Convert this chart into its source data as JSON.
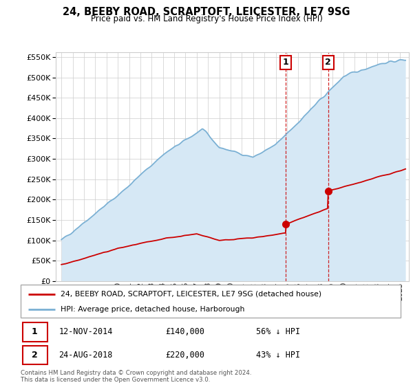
{
  "title": "24, BEEBY ROAD, SCRAPTOFT, LEICESTER, LE7 9SG",
  "subtitle": "Price paid vs. HM Land Registry's House Price Index (HPI)",
  "legend_line1": "24, BEEBY ROAD, SCRAPTOFT, LEICESTER, LE7 9SG (detached house)",
  "legend_line2": "HPI: Average price, detached house, Harborough",
  "transaction1_date": "12-NOV-2014",
  "transaction1_price": "£140,000",
  "transaction1_hpi": "56% ↓ HPI",
  "transaction2_date": "24-AUG-2018",
  "transaction2_price": "£220,000",
  "transaction2_hpi": "43% ↓ HPI",
  "footnote": "Contains HM Land Registry data © Crown copyright and database right 2024.\nThis data is licensed under the Open Government Licence v3.0.",
  "hpi_color": "#7ab0d4",
  "hpi_fill_color": "#d6e8f5",
  "price_paid_color": "#cc0000",
  "marker1_date": 2014.87,
  "marker1_price": 140000,
  "marker2_date": 2018.65,
  "marker2_price": 220000,
  "ylim": [
    0,
    562500
  ],
  "xlim_start": 1994.5,
  "xlim_end": 2025.8
}
